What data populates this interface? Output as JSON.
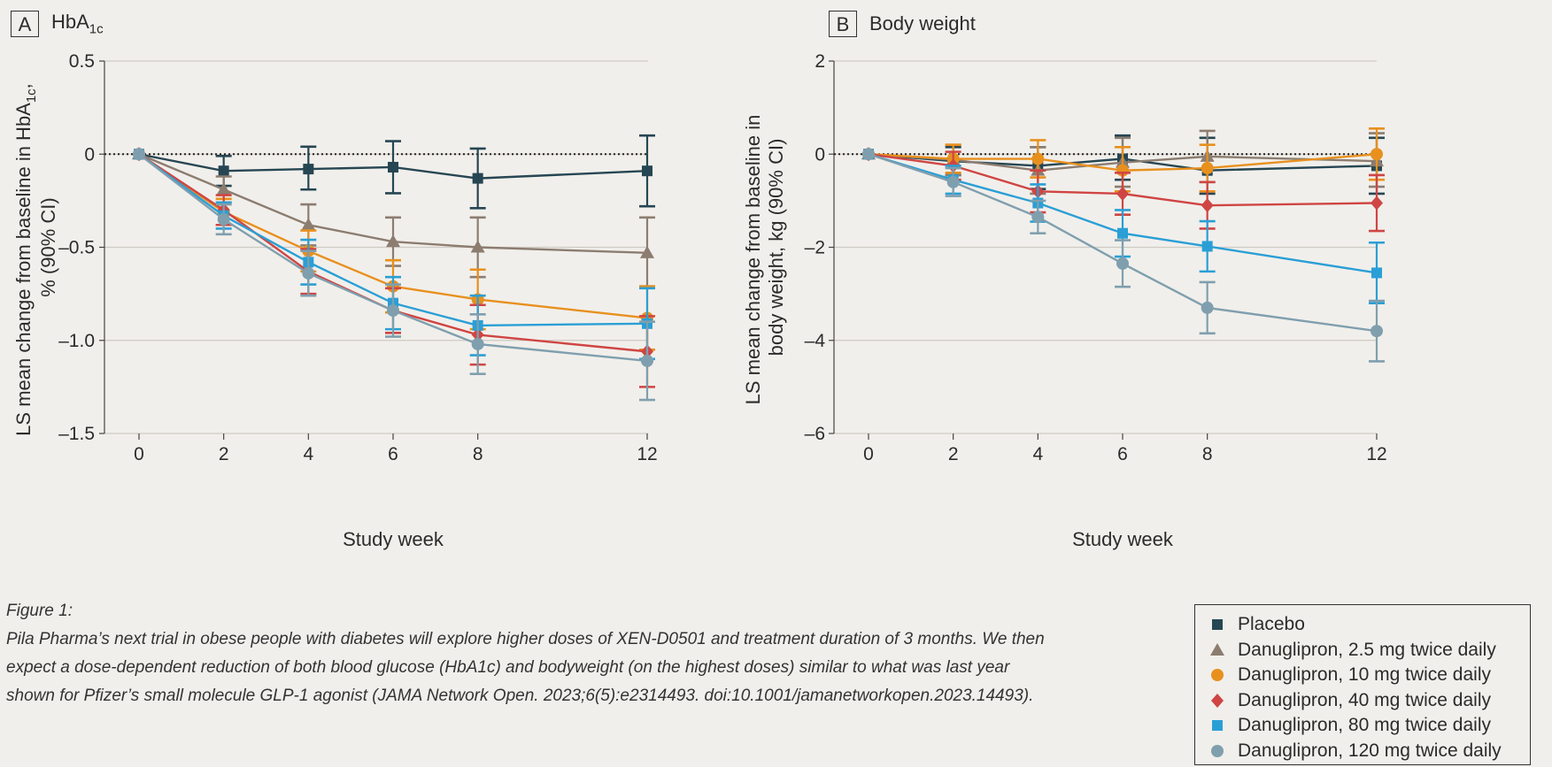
{
  "panels": {
    "a": {
      "letter": "A",
      "title_main": "HbA",
      "title_sub": "1c"
    },
    "b": {
      "letter": "B",
      "title": "Body weight"
    }
  },
  "caption": {
    "label": "Figure 1:",
    "text": "Pila Pharma’s next trial in obese people with diabetes will explore higher doses of XEN-D0501 and treatment duration of 3 months. We then expect a dose-dependent reduction of both blood glucose (HbA1c) and bodyweight (on the highest doses) similar to what was last year shown for Pfizer’s small molecule GLP-1 agonist (JAMA Network Open. 2023;6(5):e2314493. doi:10.1001/jamanetworkopen.2023.14493)."
  },
  "legend": [
    {
      "label": "Placebo",
      "color": "#264653",
      "marker": "square"
    },
    {
      "label": "Danuglipron, 2.5 mg twice daily",
      "color": "#8c7d70",
      "marker": "triangle"
    },
    {
      "label": "Danuglipron, 10 mg twice daily",
      "color": "#e8901e",
      "marker": "circle"
    },
    {
      "label": "Danuglipron, 40 mg twice daily",
      "color": "#cf4543",
      "marker": "diamond"
    },
    {
      "label": "Danuglipron, 80 mg twice daily",
      "color": "#2a9fd6",
      "marker": "square"
    },
    {
      "label": "Danuglipron, 120 mg twice daily",
      "color": "#7f9fae",
      "marker": "circle"
    }
  ],
  "chart_data": [
    {
      "type": "line",
      "title": "HbA1c",
      "xlabel": "Study week",
      "ylabel_line1": "LS mean change from baseline in HbA",
      "ylabel_sub": "1c",
      "ylabel_suffix": ",",
      "ylabel_line2": "% (90% CI)",
      "x": [
        0,
        2,
        4,
        6,
        8,
        12
      ],
      "xticks": [
        "0",
        "2",
        "4",
        "6",
        "8",
        "12"
      ],
      "yticks": [
        0.5,
        0,
        -0.5,
        -1.0,
        -1.5
      ],
      "ytick_labels": [
        "0.5",
        "0",
        "-0.5",
        "-1.0",
        "-1.5"
      ],
      "ylim": [
        -1.5,
        0.5
      ],
      "grid": true,
      "reference_line": 0,
      "series": [
        {
          "name": "Placebo",
          "values": [
            0,
            -0.09,
            -0.08,
            -0.07,
            -0.13,
            -0.09
          ],
          "ci_low": [
            0,
            -0.17,
            -0.19,
            -0.21,
            -0.29,
            -0.28
          ],
          "ci_high": [
            0,
            -0.01,
            0.04,
            0.07,
            0.03,
            0.1
          ]
        },
        {
          "name": "Danuglipron, 2.5 mg twice daily",
          "values": [
            0,
            -0.19,
            -0.38,
            -0.47,
            -0.5,
            -0.53
          ],
          "ci_low": [
            0,
            -0.26,
            -0.49,
            -0.6,
            -0.66,
            -0.71
          ],
          "ci_high": [
            0,
            -0.12,
            -0.27,
            -0.34,
            -0.34,
            -0.34
          ]
        },
        {
          "name": "Danuglipron, 10 mg twice daily",
          "values": [
            0,
            -0.31,
            -0.52,
            -0.71,
            -0.78,
            -0.88
          ],
          "ci_low": [
            0,
            -0.38,
            -0.63,
            -0.85,
            -0.94,
            -1.05
          ],
          "ci_high": [
            0,
            -0.24,
            -0.41,
            -0.57,
            -0.62,
            -0.71
          ]
        },
        {
          "name": "Danuglipron, 40 mg twice daily",
          "values": [
            0,
            -0.3,
            -0.63,
            -0.84,
            -0.97,
            -1.06
          ],
          "ci_low": [
            0,
            -0.38,
            -0.75,
            -0.96,
            -1.13,
            -1.25
          ],
          "ci_high": [
            0,
            -0.22,
            -0.51,
            -0.72,
            -0.81,
            -0.87
          ]
        },
        {
          "name": "Danuglipron, 80 mg twice daily",
          "values": [
            0,
            -0.33,
            -0.58,
            -0.8,
            -0.92,
            -0.91
          ],
          "ci_low": [
            0,
            -0.4,
            -0.7,
            -0.94,
            -1.08,
            -1.1
          ],
          "ci_high": [
            0,
            -0.26,
            -0.46,
            -0.66,
            -0.76,
            -0.72
          ]
        },
        {
          "name": "Danuglipron, 120 mg twice daily",
          "values": [
            0,
            -0.35,
            -0.64,
            -0.84,
            -1.02,
            -1.11
          ],
          "ci_low": [
            0,
            -0.43,
            -0.76,
            -0.98,
            -1.18,
            -1.32
          ],
          "ci_high": [
            0,
            -0.27,
            -0.52,
            -0.7,
            -0.86,
            -0.9
          ]
        }
      ]
    },
    {
      "type": "line",
      "title": "Body weight",
      "xlabel": "Study week",
      "ylabel_line1": "LS mean change from baseline in",
      "ylabel_line2": "body weight, kg (90% CI)",
      "x": [
        0,
        2,
        4,
        6,
        8,
        12
      ],
      "xticks": [
        "0",
        "2",
        "4",
        "6",
        "8",
        "12"
      ],
      "yticks": [
        2,
        0,
        -2,
        -4,
        -6
      ],
      "ytick_labels": [
        "2",
        "0",
        "-2",
        "-4",
        "-6"
      ],
      "ylim": [
        -6,
        2
      ],
      "grid": true,
      "reference_line": 0,
      "series": [
        {
          "name": "Placebo",
          "values": [
            0,
            -0.15,
            -0.25,
            -0.1,
            -0.35,
            -0.25
          ],
          "ci_low": [
            0,
            -0.45,
            -0.75,
            -0.55,
            -0.85,
            -0.85
          ],
          "ci_high": [
            0,
            0.15,
            0.15,
            0.4,
            0.35,
            0.35
          ]
        },
        {
          "name": "Danuglipron, 2.5 mg twice daily",
          "values": [
            0,
            -0.12,
            -0.35,
            -0.18,
            -0.05,
            -0.15
          ],
          "ci_low": [
            0,
            -0.45,
            -0.85,
            -0.7,
            -0.6,
            -0.7
          ],
          "ci_high": [
            0,
            0.2,
            0.15,
            0.35,
            0.5,
            0.45
          ]
        },
        {
          "name": "Danuglipron, 10 mg twice daily",
          "values": [
            0,
            -0.1,
            -0.1,
            -0.35,
            -0.3,
            0.0
          ],
          "ci_low": [
            0,
            -0.4,
            -0.5,
            -0.8,
            -0.8,
            -0.55
          ],
          "ci_high": [
            0,
            0.2,
            0.3,
            0.15,
            0.2,
            0.55
          ]
        },
        {
          "name": "Danuglipron, 40 mg twice daily",
          "values": [
            0,
            -0.25,
            -0.8,
            -0.85,
            -1.1,
            -1.05
          ],
          "ci_low": [
            0,
            -0.55,
            -1.25,
            -1.3,
            -1.6,
            -1.65
          ],
          "ci_high": [
            0,
            0.05,
            -0.35,
            -0.4,
            -0.6,
            -0.45
          ]
        },
        {
          "name": "Danuglipron, 80 mg twice daily",
          "values": [
            0,
            -0.55,
            -1.05,
            -1.7,
            -1.98,
            -2.55
          ],
          "ci_low": [
            0,
            -0.85,
            -1.45,
            -2.2,
            -2.52,
            -3.2
          ],
          "ci_high": [
            0,
            -0.25,
            -0.65,
            -1.2,
            -1.44,
            -1.9
          ]
        },
        {
          "name": "Danuglipron, 120 mg twice daily",
          "values": [
            0,
            -0.6,
            -1.35,
            -2.35,
            -3.3,
            -3.8
          ],
          "ci_low": [
            0,
            -0.9,
            -1.7,
            -2.85,
            -3.85,
            -4.45
          ],
          "ci_high": [
            0,
            -0.3,
            -1.0,
            -1.85,
            -2.75,
            -3.15
          ]
        }
      ]
    }
  ]
}
